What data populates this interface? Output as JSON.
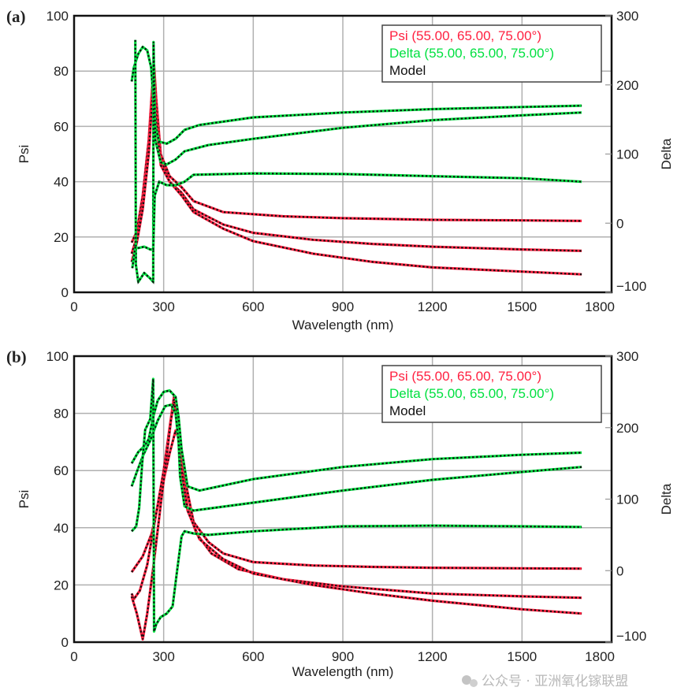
{
  "chart_data": [
    {
      "type": "line",
      "panel_label": "(a)",
      "xlabel": "Wavelength (nm)",
      "ylabel": "Psi",
      "y2label": "Delta",
      "xlim": [
        0,
        1800
      ],
      "ylim": [
        0,
        100
      ],
      "y2lim": [
        -100,
        300
      ],
      "xticks": [
        "0",
        "300",
        "600",
        "900",
        "1200",
        "1500",
        "1800"
      ],
      "yticks": [
        "0",
        "20",
        "40",
        "60",
        "80",
        "100"
      ],
      "y2ticks": [
        "−100",
        "0",
        "100",
        "200",
        "300"
      ],
      "grid": true,
      "legend_position": "top-right",
      "legend": [
        {
          "label": "Psi (55.00, 65.00, 75.00°)",
          "color": "#ff2040"
        },
        {
          "label": "Delta (55.00, 65.00, 75.00°)",
          "color": "#00e040"
        },
        {
          "label": "Model",
          "color": "#111111"
        }
      ],
      "series": [
        {
          "name": "Psi 55°",
          "axis": "left",
          "color": "#ff2040",
          "points": [
            [
              193,
              18
            ],
            [
              210,
              22
            ],
            [
              230,
              35
            ],
            [
              250,
              55
            ],
            [
              262,
              75
            ],
            [
              268,
              82
            ],
            [
              275,
              70
            ],
            [
              290,
              50
            ],
            [
              320,
              42
            ],
            [
              360,
              38
            ],
            [
              400,
              33
            ],
            [
              500,
              29
            ],
            [
              700,
              27.5
            ],
            [
              900,
              26.8
            ],
            [
              1200,
              26.2
            ],
            [
              1500,
              26
            ],
            [
              1700,
              25.8
            ]
          ]
        },
        {
          "name": "Psi 65°",
          "axis": "left",
          "color": "#ff2040",
          "points": [
            [
              193,
              14
            ],
            [
              210,
              20
            ],
            [
              230,
              32
            ],
            [
              250,
              52
            ],
            [
              262,
              72
            ],
            [
              268,
              80
            ],
            [
              275,
              66
            ],
            [
              290,
              48
            ],
            [
              320,
              40
            ],
            [
              360,
              36
            ],
            [
              400,
              30
            ],
            [
              500,
              24.5
            ],
            [
              600,
              21.5
            ],
            [
              800,
              19
            ],
            [
              1000,
              17.5
            ],
            [
              1200,
              16.5
            ],
            [
              1500,
              15.5
            ],
            [
              1700,
              15
            ]
          ]
        },
        {
          "name": "Psi 75°",
          "axis": "left",
          "color": "#ff2040",
          "points": [
            [
              193,
              11
            ],
            [
              210,
              18
            ],
            [
              230,
              30
            ],
            [
              250,
              50
            ],
            [
              262,
              70
            ],
            [
              268,
              78
            ],
            [
              275,
              62
            ],
            [
              290,
              46
            ],
            [
              320,
              40
            ],
            [
              360,
              35
            ],
            [
              400,
              29
            ],
            [
              500,
              23
            ],
            [
              600,
              18.5
            ],
            [
              800,
              14
            ],
            [
              1000,
              11
            ],
            [
              1200,
              9
            ],
            [
              1500,
              7.5
            ],
            [
              1700,
              6.5
            ]
          ]
        },
        {
          "name": "Delta 55°",
          "axis": "right",
          "color": "#00e040",
          "points": [
            [
              193,
              205
            ],
            [
              200,
              225
            ],
            [
              215,
              245
            ],
            [
              230,
              255
            ],
            [
              245,
              250
            ],
            [
              258,
              225
            ],
            [
              266,
              175
            ],
            [
              272,
              140
            ],
            [
              285,
              118
            ],
            [
              310,
              115
            ],
            [
              340,
              122
            ],
            [
              370,
              135
            ],
            [
              420,
              142
            ],
            [
              600,
              153
            ],
            [
              900,
              160
            ],
            [
              1200,
              165
            ],
            [
              1500,
              168
            ],
            [
              1700,
              170
            ]
          ]
        },
        {
          "name": "Delta 65°",
          "axis": "right",
          "color": "#00e040",
          "points": [
            [
              205,
              265
            ],
            [
              207,
              -60
            ],
            [
              215,
              -85
            ],
            [
              235,
              -72
            ],
            [
              255,
              -80
            ],
            [
              265,
              -85
            ],
            [
              266,
              262
            ],
            [
              272,
              120
            ],
            [
              290,
              88
            ],
            [
              310,
              85
            ],
            [
              340,
              92
            ],
            [
              370,
              104
            ],
            [
              450,
              113
            ],
            [
              600,
              122
            ],
            [
              900,
              138
            ],
            [
              1200,
              149
            ],
            [
              1500,
              156
            ],
            [
              1700,
              160
            ]
          ]
        },
        {
          "name": "Delta 75°",
          "axis": "right",
          "color": "#00e040",
          "points": [
            [
              195,
              -65
            ],
            [
              205,
              -35
            ],
            [
              215,
              -36
            ],
            [
              235,
              -34
            ],
            [
              255,
              -38
            ],
            [
              265,
              -38
            ],
            [
              270,
              40
            ],
            [
              285,
              60
            ],
            [
              310,
              55
            ],
            [
              340,
              55
            ],
            [
              370,
              60
            ],
            [
              400,
              70
            ],
            [
              600,
              72
            ],
            [
              900,
              71
            ],
            [
              1200,
              68
            ],
            [
              1500,
              65
            ],
            [
              1700,
              60
            ]
          ]
        }
      ]
    },
    {
      "type": "line",
      "panel_label": "(b)",
      "xlabel": "Wavelength (nm)",
      "ylabel": "Psi",
      "y2label": "Delta",
      "xlim": [
        0,
        1800
      ],
      "ylim": [
        0,
        100
      ],
      "y2lim": [
        -100,
        300
      ],
      "xticks": [
        "0",
        "300",
        "600",
        "900",
        "1200",
        "1500",
        "1800"
      ],
      "yticks": [
        "0",
        "20",
        "40",
        "60",
        "80",
        "100"
      ],
      "y2ticks": [
        "−100",
        "0",
        "100",
        "200",
        "300"
      ],
      "grid": true,
      "legend_position": "top-right",
      "legend": [
        {
          "label": "Psi (55.00, 65.00, 75.00°)",
          "color": "#ff2040"
        },
        {
          "label": "Delta (55.00, 65.00, 75.00°)",
          "color": "#00e040"
        },
        {
          "label": "Model",
          "color": "#111111"
        }
      ],
      "series": [
        {
          "name": "Psi 55°",
          "axis": "left",
          "color": "#ff2040",
          "points": [
            [
              193,
              24.5
            ],
            [
              230,
              30
            ],
            [
              260,
              38
            ],
            [
              290,
              52
            ],
            [
              320,
              66
            ],
            [
              340,
              74
            ],
            [
              355,
              70
            ],
            [
              375,
              55
            ],
            [
              400,
              42
            ],
            [
              450,
              35
            ],
            [
              500,
              31
            ],
            [
              600,
              28
            ],
            [
              800,
              26.8
            ],
            [
              1000,
              26.3
            ],
            [
              1200,
              26
            ],
            [
              1500,
              25.8
            ],
            [
              1700,
              25.7
            ]
          ]
        },
        {
          "name": "Psi 65°",
          "axis": "left",
          "color": "#ff2040",
          "points": [
            [
              193,
              17
            ],
            [
              200,
              15
            ],
            [
              220,
              18
            ],
            [
              245,
              27
            ],
            [
              270,
              42
            ],
            [
              300,
              60
            ],
            [
              320,
              75
            ],
            [
              335,
              86
            ],
            [
              345,
              80
            ],
            [
              360,
              62
            ],
            [
              380,
              47
            ],
            [
              410,
              38
            ],
            [
              460,
              31
            ],
            [
              550,
              25.5
            ],
            [
              700,
              22
            ],
            [
              900,
              19.5
            ],
            [
              1200,
              17
            ],
            [
              1500,
              16
            ],
            [
              1700,
              15.5
            ]
          ]
        },
        {
          "name": "Psi 75°",
          "axis": "left",
          "color": "#ff2040",
          "points": [
            [
              193,
              16
            ],
            [
              210,
              10
            ],
            [
              230,
              1
            ],
            [
              245,
              10
            ],
            [
              265,
              26
            ],
            [
              290,
              48
            ],
            [
              310,
              65
            ],
            [
              325,
              78
            ],
            [
              335,
              84
            ],
            [
              345,
              78
            ],
            [
              360,
              60
            ],
            [
              380,
              46
            ],
            [
              420,
              36
            ],
            [
              500,
              29
            ],
            [
              600,
              24
            ],
            [
              800,
              20
            ],
            [
              1000,
              17
            ],
            [
              1200,
              14.5
            ],
            [
              1500,
              11.5
            ],
            [
              1700,
              10
            ]
          ]
        },
        {
          "name": "Delta 55°",
          "axis": "right",
          "color": "#00e040",
          "points": [
            [
              193,
              150
            ],
            [
              215,
              166
            ],
            [
              235,
              174
            ],
            [
              250,
              184
            ],
            [
              265,
              215
            ],
            [
              280,
              238
            ],
            [
              300,
              250
            ],
            [
              320,
              252
            ],
            [
              340,
              243
            ],
            [
              350,
              215
            ],
            [
              360,
              170
            ],
            [
              380,
              118
            ],
            [
              420,
              112
            ],
            [
              600,
              128
            ],
            [
              900,
              145
            ],
            [
              1200,
              156
            ],
            [
              1500,
              162
            ],
            [
              1700,
              165
            ]
          ]
        },
        {
          "name": "Delta 65°",
          "axis": "right",
          "color": "#00e040",
          "points": [
            [
              193,
              118
            ],
            [
              210,
              138
            ],
            [
              230,
              160
            ],
            [
              255,
              182
            ],
            [
              280,
              210
            ],
            [
              305,
              230
            ],
            [
              325,
              232
            ],
            [
              340,
              220
            ],
            [
              350,
              180
            ],
            [
              355,
              132
            ],
            [
              370,
              90
            ],
            [
              400,
              84
            ],
            [
              600,
              95
            ],
            [
              900,
              112
            ],
            [
              1200,
              127
            ],
            [
              1500,
              138
            ],
            [
              1700,
              145
            ]
          ]
        },
        {
          "name": "Delta 75°",
          "axis": "right",
          "color": "#00e040",
          "points": [
            [
              193,
              55
            ],
            [
              208,
              62
            ],
            [
              218,
              88
            ],
            [
              228,
              150
            ],
            [
              238,
              197
            ],
            [
              255,
              212
            ],
            [
              265,
              268
            ],
            [
              268,
              -85
            ],
            [
              275,
              -75
            ],
            [
              290,
              -65
            ],
            [
              310,
              -60
            ],
            [
              330,
              -50
            ],
            [
              345,
              0
            ],
            [
              360,
              48
            ],
            [
              370,
              55
            ],
            [
              400,
              52
            ],
            [
              450,
              50
            ],
            [
              600,
              55
            ],
            [
              900,
              62
            ],
            [
              1200,
              63
            ],
            [
              1500,
              62
            ],
            [
              1700,
              61
            ]
          ]
        }
      ]
    }
  ],
  "watermark": {
    "text": "公众号 · 亚洲氧化镓联盟"
  }
}
